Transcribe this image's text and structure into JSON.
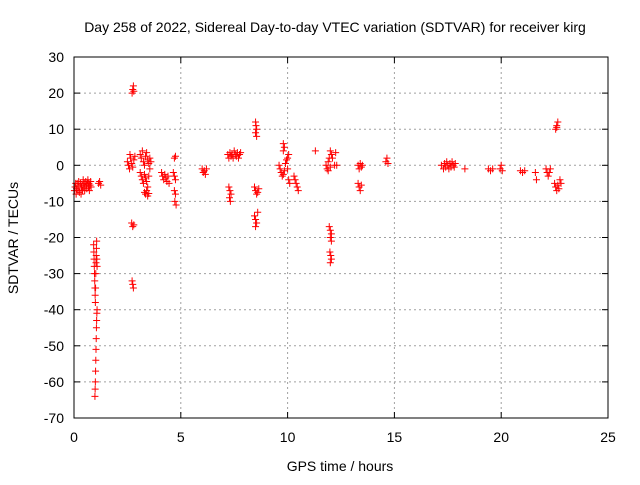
{
  "chart_data": {
    "type": "scatter",
    "title": "Day 258 of 2022, Sidereal Day-to-day VTEC variation (SDTVAR) for receiver kirg",
    "xlabel": "GPS time / hours",
    "ylabel": "SDTVAR / TECUs",
    "xlim": [
      0,
      25
    ],
    "ylim": [
      -70,
      30
    ],
    "xticks": [
      0,
      5,
      10,
      15,
      20,
      25
    ],
    "yticks": [
      -70,
      -60,
      -50,
      -40,
      -30,
      -20,
      -10,
      0,
      10,
      20,
      30
    ],
    "grid": true,
    "marker": "plus",
    "color": "#ff0000",
    "series": [
      {
        "name": "SDTVAR",
        "points": [
          [
            0.02,
            -7
          ],
          [
            0.05,
            -6
          ],
          [
            0.08,
            -5
          ],
          [
            0.1,
            -8
          ],
          [
            0.12,
            -6.5
          ],
          [
            0.15,
            -5
          ],
          [
            0.18,
            -7
          ],
          [
            0.2,
            -6
          ],
          [
            0.22,
            -4.5
          ],
          [
            0.25,
            -7.5
          ],
          [
            0.28,
            -6
          ],
          [
            0.3,
            -5
          ],
          [
            0.33,
            -8
          ],
          [
            0.35,
            -6
          ],
          [
            0.38,
            -5.5
          ],
          [
            0.4,
            -7
          ],
          [
            0.43,
            -4
          ],
          [
            0.45,
            -6
          ],
          [
            0.48,
            -5
          ],
          [
            0.5,
            -7
          ],
          [
            0.52,
            -6
          ],
          [
            0.55,
            -4.5
          ],
          [
            0.58,
            -5.5
          ],
          [
            0.6,
            -6.5
          ],
          [
            0.62,
            -5
          ],
          [
            0.65,
            -4
          ],
          [
            0.68,
            -6
          ],
          [
            0.7,
            -5
          ],
          [
            0.72,
            -7
          ],
          [
            0.75,
            -5.5
          ],
          [
            0.78,
            -4.5
          ],
          [
            0.8,
            -6
          ],
          [
            1.15,
            -5
          ],
          [
            1.2,
            -4.5
          ],
          [
            1.25,
            -5.5
          ],
          [
            0.92,
            -22
          ],
          [
            0.93,
            -24
          ],
          [
            0.94,
            -26
          ],
          [
            0.95,
            -28
          ],
          [
            0.96,
            -30
          ],
          [
            0.97,
            -32
          ],
          [
            0.98,
            -34
          ],
          [
            0.99,
            -36
          ],
          [
            1.0,
            -38
          ],
          [
            1.01,
            -34
          ],
          [
            1.02,
            -30
          ],
          [
            1.03,
            -27
          ],
          [
            1.04,
            -25
          ],
          [
            1.05,
            -23
          ],
          [
            1.06,
            -21
          ],
          [
            1.07,
            -26
          ],
          [
            1.08,
            -28
          ],
          [
            0.98,
            -64
          ],
          [
            0.99,
            -62
          ],
          [
            1.0,
            -60
          ],
          [
            1.01,
            -57
          ],
          [
            1.02,
            -54
          ],
          [
            1.03,
            -51
          ],
          [
            1.04,
            -48
          ],
          [
            1.05,
            -45
          ],
          [
            1.06,
            -43
          ],
          [
            1.07,
            -41
          ],
          [
            1.08,
            -40
          ],
          [
            2.5,
            1
          ],
          [
            2.55,
            0
          ],
          [
            2.6,
            -1
          ],
          [
            2.62,
            3
          ],
          [
            2.65,
            2
          ],
          [
            2.7,
            0.5
          ],
          [
            2.75,
            -0.5
          ],
          [
            2.8,
            1.5
          ],
          [
            2.85,
            2.5
          ],
          [
            2.72,
            20
          ],
          [
            2.75,
            21
          ],
          [
            2.78,
            22
          ],
          [
            2.8,
            20.5
          ],
          [
            2.7,
            -16
          ],
          [
            2.75,
            -17
          ],
          [
            2.8,
            -16.5
          ],
          [
            2.72,
            -32
          ],
          [
            2.75,
            -33
          ],
          [
            2.78,
            -34
          ],
          [
            3.1,
            3
          ],
          [
            3.15,
            2
          ],
          [
            3.2,
            4
          ],
          [
            3.25,
            1
          ],
          [
            3.3,
            0
          ],
          [
            3.35,
            2.5
          ],
          [
            3.4,
            3.5
          ],
          [
            3.45,
            1.5
          ],
          [
            3.5,
            0.5
          ],
          [
            3.55,
            2
          ],
          [
            3.6,
            1
          ],
          [
            3.1,
            -2
          ],
          [
            3.15,
            -3
          ],
          [
            3.2,
            -4
          ],
          [
            3.25,
            -5
          ],
          [
            3.3,
            -2.5
          ],
          [
            3.35,
            -3.5
          ],
          [
            3.4,
            -4.5
          ],
          [
            3.45,
            -6
          ],
          [
            3.5,
            -3
          ],
          [
            3.55,
            -1
          ],
          [
            3.3,
            -7.5
          ],
          [
            3.35,
            -8
          ],
          [
            3.4,
            -7
          ],
          [
            3.45,
            -8.5
          ],
          [
            3.5,
            -7.8
          ],
          [
            4.1,
            -2
          ],
          [
            4.15,
            -3
          ],
          [
            4.2,
            -4
          ],
          [
            4.25,
            -2.5
          ],
          [
            4.3,
            -3.5
          ],
          [
            4.35,
            -4.5
          ],
          [
            4.4,
            -3
          ],
          [
            4.45,
            -5
          ],
          [
            4.65,
            -2
          ],
          [
            4.7,
            -3
          ],
          [
            4.75,
            -4
          ],
          [
            4.7,
            -7
          ],
          [
            4.75,
            -8
          ],
          [
            4.72,
            -10
          ],
          [
            4.78,
            -11
          ],
          [
            4.7,
            2
          ],
          [
            4.75,
            2.5
          ],
          [
            6.0,
            -1
          ],
          [
            6.05,
            -2
          ],
          [
            6.1,
            -1.5
          ],
          [
            6.15,
            -2.5
          ],
          [
            6.2,
            -1
          ],
          [
            7.2,
            3
          ],
          [
            7.25,
            2
          ],
          [
            7.3,
            3.5
          ],
          [
            7.35,
            2.5
          ],
          [
            7.4,
            3
          ],
          [
            7.45,
            2
          ],
          [
            7.5,
            4
          ],
          [
            7.55,
            3
          ],
          [
            7.6,
            2.5
          ],
          [
            7.65,
            3.5
          ],
          [
            7.7,
            2
          ],
          [
            7.75,
            3
          ],
          [
            7.8,
            3.5
          ],
          [
            7.25,
            -6
          ],
          [
            7.3,
            -7
          ],
          [
            7.35,
            -8
          ],
          [
            7.28,
            -9
          ],
          [
            7.32,
            -10
          ],
          [
            8.5,
            12
          ],
          [
            8.52,
            11
          ],
          [
            8.55,
            10
          ],
          [
            8.5,
            9
          ],
          [
            8.55,
            8
          ],
          [
            8.45,
            -6
          ],
          [
            8.5,
            -7
          ],
          [
            8.55,
            -8
          ],
          [
            8.6,
            -7.5
          ],
          [
            8.65,
            -6.5
          ],
          [
            8.45,
            -14
          ],
          [
            8.5,
            -15
          ],
          [
            8.55,
            -16
          ],
          [
            8.5,
            -17
          ],
          [
            8.6,
            -13
          ],
          [
            9.6,
            0
          ],
          [
            9.65,
            -1
          ],
          [
            9.7,
            -2
          ],
          [
            9.75,
            -3
          ],
          [
            9.8,
            -2.5
          ],
          [
            9.85,
            -1.5
          ],
          [
            9.9,
            0.5
          ],
          [
            9.95,
            1.5
          ],
          [
            10.0,
            -1
          ],
          [
            10.05,
            -4
          ],
          [
            10.1,
            -5
          ],
          [
            10.0,
            2
          ],
          [
            10.05,
            3
          ],
          [
            9.8,
            4
          ],
          [
            9.85,
            5
          ],
          [
            9.8,
            6
          ],
          [
            10.3,
            -3
          ],
          [
            10.35,
            -4
          ],
          [
            10.4,
            -5
          ],
          [
            10.45,
            -6
          ],
          [
            10.5,
            -7
          ],
          [
            11.3,
            4
          ],
          [
            11.8,
            0
          ],
          [
            11.85,
            -1
          ],
          [
            11.9,
            1
          ],
          [
            11.95,
            2
          ],
          [
            12.0,
            -0.5
          ],
          [
            12.05,
            3
          ],
          [
            12.1,
            2
          ],
          [
            11.9,
            -1.5
          ],
          [
            12.0,
            4
          ],
          [
            12.2,
            0
          ],
          [
            12.25,
            3.5
          ],
          [
            12.3,
            0
          ],
          [
            11.95,
            -17
          ],
          [
            12.0,
            -18
          ],
          [
            12.05,
            -19
          ],
          [
            12.0,
            -20
          ],
          [
            12.05,
            -21
          ],
          [
            11.98,
            -24
          ],
          [
            12.02,
            -25
          ],
          [
            12.05,
            -26
          ],
          [
            12.0,
            -27
          ],
          [
            13.3,
            0
          ],
          [
            13.35,
            -1
          ],
          [
            13.4,
            0.5
          ],
          [
            13.45,
            -0.5
          ],
          [
            13.5,
            0
          ],
          [
            13.3,
            -5
          ],
          [
            13.35,
            -6
          ],
          [
            13.4,
            -7
          ],
          [
            13.45,
            -5.5
          ],
          [
            14.6,
            1
          ],
          [
            14.65,
            2
          ],
          [
            14.7,
            0.5
          ],
          [
            17.2,
            0
          ],
          [
            17.3,
            -1
          ],
          [
            17.35,
            0.5
          ],
          [
            17.4,
            -0.5
          ],
          [
            17.45,
            1
          ],
          [
            17.5,
            0
          ],
          [
            17.55,
            -1
          ],
          [
            17.6,
            0.5
          ],
          [
            17.65,
            -0.5
          ],
          [
            17.7,
            1
          ],
          [
            17.75,
            0
          ],
          [
            17.8,
            -0.5
          ],
          [
            17.85,
            0.5
          ],
          [
            18.3,
            -1
          ],
          [
            19.4,
            -1
          ],
          [
            19.5,
            -1.5
          ],
          [
            19.6,
            -1
          ],
          [
            19.95,
            -1
          ],
          [
            20.0,
            0
          ],
          [
            20.05,
            -1.5
          ],
          [
            20.9,
            -1.5
          ],
          [
            21.0,
            -2
          ],
          [
            21.1,
            -1.5
          ],
          [
            21.6,
            -2
          ],
          [
            21.65,
            -4
          ],
          [
            22.1,
            -1
          ],
          [
            22.15,
            -2
          ],
          [
            22.2,
            -3
          ],
          [
            22.25,
            -2
          ],
          [
            22.3,
            -1
          ],
          [
            22.5,
            -5
          ],
          [
            22.55,
            -6
          ],
          [
            22.6,
            -7
          ],
          [
            22.65,
            -5.5
          ],
          [
            22.7,
            -6.5
          ],
          [
            22.75,
            -4
          ],
          [
            22.8,
            -5
          ],
          [
            22.55,
            10
          ],
          [
            22.6,
            11
          ],
          [
            22.65,
            12
          ],
          [
            22.6,
            10.5
          ]
        ]
      }
    ]
  }
}
